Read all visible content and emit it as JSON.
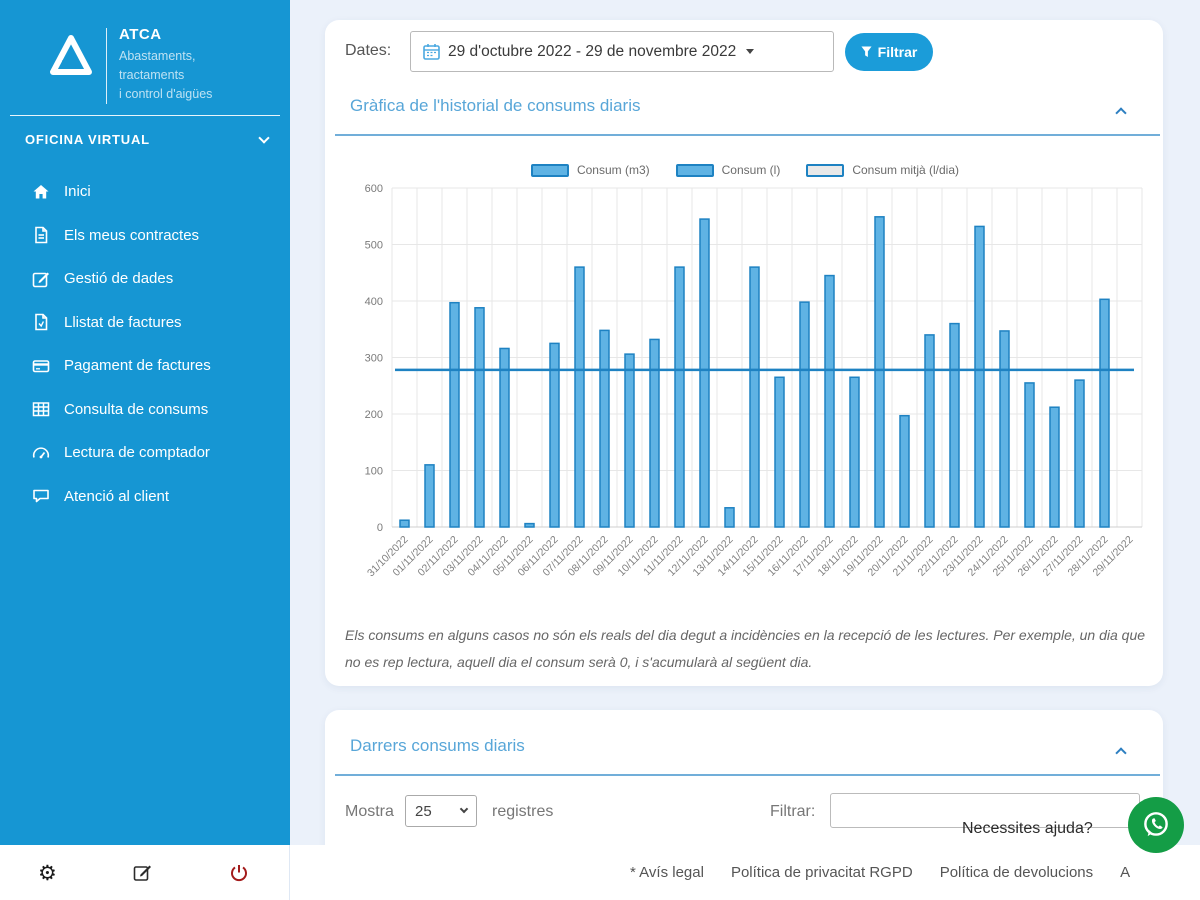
{
  "colors": {
    "sidebar": "#1696d3",
    "accent_button": "#1b9cd9",
    "section_title": "#58a6d8",
    "bar_fill": "#5fb3e4",
    "bar_border": "#1e82c2",
    "whatsapp_green": "#149d46"
  },
  "sidebar": {
    "logo": {
      "brand": "ATCA",
      "subtitle_lines": [
        "Abastaments,",
        "tractaments",
        "i control d'aigües"
      ]
    },
    "section_label": "OFICINA VIRTUAL",
    "menu": [
      {
        "label": "Inici",
        "icon": "home-icon"
      },
      {
        "label": "Els meus contractes",
        "icon": "contracts-file-icon"
      },
      {
        "label": "Gestió de dades",
        "icon": "edit-data-icon"
      },
      {
        "label": "Llistat de factures",
        "icon": "invoice-file-icon"
      },
      {
        "label": "Pagament de factures",
        "icon": "credit-card-icon"
      },
      {
        "label": "Consulta de consums",
        "icon": "table-icon"
      },
      {
        "label": "Lectura de comptador",
        "icon": "meter-gauge-icon"
      },
      {
        "label": "Atenció al client",
        "icon": "support-chat-icon"
      }
    ]
  },
  "filters": {
    "dates_label": "Dates:",
    "date_range": "29 d'octubre 2022 - 29 de novembre 2022",
    "filter_button": "Filtrar"
  },
  "chart_card": {
    "title": "Gràfica de l'historial de consums diaris",
    "note": "Els consums en alguns casos no són els reals del dia degut a incidències en la recepció de les lectures. Per exemple, un dia que no es rep lectura, aquell dia el consum serà 0, i s'acumularà al següent dia."
  },
  "chart_data": {
    "type": "bar",
    "title": "Gràfica de l'historial de consums diaris",
    "categories": [
      "31/10/2022",
      "01/11/2022",
      "02/11/2022",
      "03/11/2022",
      "04/11/2022",
      "05/11/2022",
      "06/11/2022",
      "07/11/2022",
      "08/11/2022",
      "09/11/2022",
      "10/11/2022",
      "11/11/2022",
      "12/11/2022",
      "13/11/2022",
      "14/11/2022",
      "15/11/2022",
      "16/11/2022",
      "17/11/2022",
      "18/11/2022",
      "19/11/2022",
      "20/11/2022",
      "21/11/2022",
      "22/11/2022",
      "23/11/2022",
      "24/11/2022",
      "25/11/2022",
      "26/11/2022",
      "27/11/2022",
      "28/11/2022",
      "29/11/2022"
    ],
    "series": [
      {
        "name": "Consum (l)",
        "type": "bar",
        "values": [
          12,
          110,
          397,
          388,
          316,
          6,
          325,
          460,
          348,
          306,
          332,
          460,
          545,
          34,
          460,
          265,
          398,
          445,
          265,
          549,
          197,
          340,
          360,
          532,
          347,
          255,
          212,
          260,
          403,
          0
        ]
      },
      {
        "name": "Consum mitjà (l/dia)",
        "type": "line",
        "value": 278
      }
    ],
    "legend": [
      {
        "label": "Consum (m3)",
        "fill": "#5fb3e4"
      },
      {
        "label": "Consum (l)",
        "fill": "#5fb3e4"
      },
      {
        "label": "Consum mitjà (l/dia)",
        "fill": "#e9e9e9"
      }
    ],
    "ylim": [
      0,
      600
    ],
    "ytick_step": 100,
    "grid": true,
    "legend_position": "top",
    "bar_border": "#1e82c2",
    "mean_line_color": "#1e82c2"
  },
  "table_card": {
    "title": "Darrers consums diaris",
    "show_label_before": "Mostra",
    "show_value": "25",
    "show_label_after": "registres",
    "filter_label": "Filtrar:"
  },
  "help": {
    "text": "Necessites ajuda?"
  },
  "footer": {
    "links": [
      "* Avís legal",
      "Política de privacitat RGPD",
      "Política de devolucions",
      "A"
    ]
  }
}
